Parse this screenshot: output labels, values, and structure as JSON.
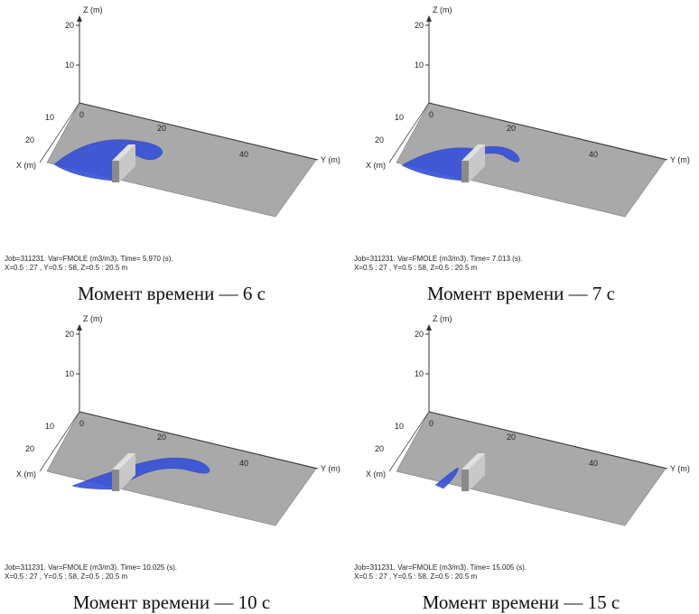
{
  "panels": [
    {
      "z_axis_label": "Z (m)",
      "z_ticks": [
        "20",
        "10"
      ],
      "x_axis_label": "X (m)",
      "x_ticks": [
        "10",
        "20"
      ],
      "y_axis_label": "Y (m)",
      "y_ticks": [
        "0",
        "20",
        "40"
      ],
      "info_line_1": "Job=311231.  Var=FMOLE (m3/m3). Time=  5.970 (s).",
      "info_line_2": "X=0.5 : 27 , Y=0.5 : 58, Z=0.5 : 20.5 m",
      "caption": "Момент времени — 6 с"
    },
    {
      "z_axis_label": "Z (m)",
      "z_ticks": [
        "20",
        "10"
      ],
      "x_axis_label": "X (m)",
      "x_ticks": [
        "10",
        "20"
      ],
      "y_axis_label": "Y (m)",
      "y_ticks": [
        "0",
        "20",
        "40"
      ],
      "info_line_1": "Job=311231.  Var=FMOLE (m3/m3). Time=  7.013 (s).",
      "info_line_2": "X=0.5 : 27 , Y=0.5 : 58, Z=0.5 : 20.5 m",
      "caption": "Момент времени — 7 с"
    },
    {
      "z_axis_label": "Z (m)",
      "z_ticks": [
        "20",
        "10"
      ],
      "x_axis_label": "X (m)",
      "x_ticks": [
        "10",
        "20"
      ],
      "y_axis_label": "Y (m)",
      "y_ticks": [
        "0",
        "20",
        "40"
      ],
      "info_line_1": "Job=311231.  Var=FMOLE (m3/m3). Time= 10.025 (s).",
      "info_line_2": "X=0.5 : 27 , Y=0.5 : 58, Z=0.5 : 20.5 m",
      "caption": "Момент времени — 10 с"
    },
    {
      "z_axis_label": "Z (m)",
      "z_ticks": [
        "20",
        "10"
      ],
      "x_axis_label": "X (m)",
      "x_ticks": [
        "10",
        "20"
      ],
      "y_axis_label": "Y (m)",
      "y_ticks": [
        "0",
        "20",
        "40"
      ],
      "info_line_1": "Job=311231.  Var=FMOLE (m3/m3). Time= 15.005 (s).",
      "info_line_2": "X=0.5 : 27 , Y=0.5 : 58, Z=0.5 : 20.5 m",
      "caption": "Момент времени — 15 с"
    }
  ]
}
